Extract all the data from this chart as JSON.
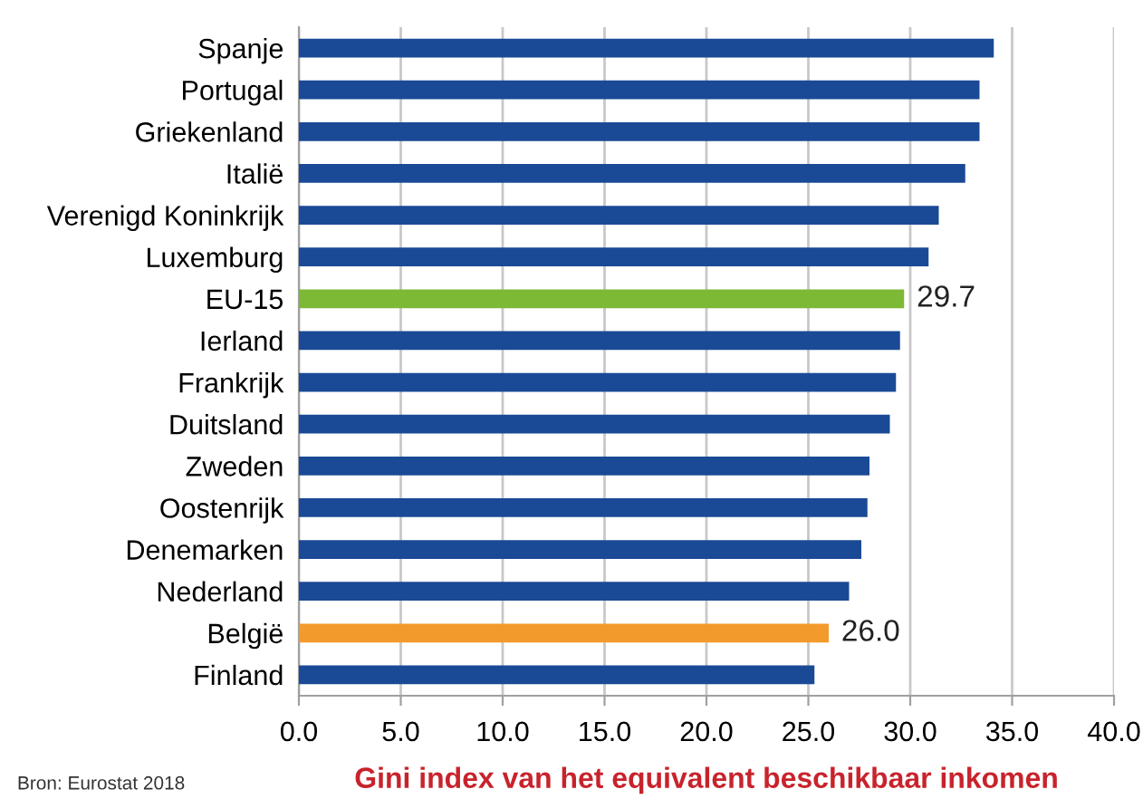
{
  "chart_data": {
    "type": "bar",
    "orientation": "horizontal",
    "categories": [
      "Spanje",
      "Portugal",
      "Griekenland",
      "Italië",
      "Verenigd Koninkrijk",
      "Luxemburg",
      "EU-15",
      "Ierland",
      "Frankrijk",
      "Duitsland",
      "Zweden",
      "Oostenrijk",
      "Denemarken",
      "Nederland",
      "België",
      "Finland"
    ],
    "values": [
      34.1,
      33.4,
      33.4,
      32.7,
      31.4,
      30.9,
      29.7,
      29.5,
      29.3,
      29.0,
      28.0,
      27.9,
      27.6,
      27.0,
      26.0,
      25.3
    ],
    "colors": [
      "#1a4a96",
      "#1a4a96",
      "#1a4a96",
      "#1a4a96",
      "#1a4a96",
      "#1a4a96",
      "#7db935",
      "#1a4a96",
      "#1a4a96",
      "#1a4a96",
      "#1a4a96",
      "#1a4a96",
      "#1a4a96",
      "#1a4a96",
      "#f39a2c",
      "#1a4a96"
    ],
    "value_labels": [
      null,
      null,
      null,
      null,
      null,
      null,
      "29.7",
      null,
      null,
      null,
      null,
      null,
      null,
      null,
      "26.0",
      null
    ],
    "xlim": [
      0,
      40
    ],
    "xticks": [
      {
        "value": 0,
        "label": "0.0"
      },
      {
        "value": 5,
        "label": "5.0"
      },
      {
        "value": 10,
        "label": "10.0"
      },
      {
        "value": 15,
        "label": "15.0"
      },
      {
        "value": 20,
        "label": "20.0"
      },
      {
        "value": 25,
        "label": "25.0"
      },
      {
        "value": 30,
        "label": "30.0"
      },
      {
        "value": 35,
        "label": "35.0"
      },
      {
        "value": 40,
        "label": "40.0"
      }
    ],
    "xlabel": "Gini index van het equivalent beschikbaar inkomen",
    "annotations": [
      "Bron: Eurostat 2018"
    ],
    "grid": "x"
  }
}
